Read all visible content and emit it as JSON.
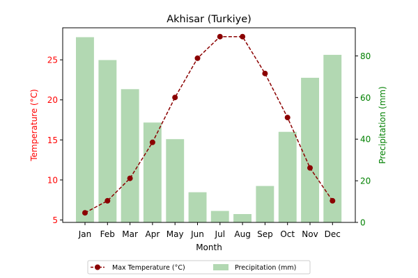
{
  "chart_data": {
    "type": "bar",
    "title": "Akhisar (Turkiye)",
    "xlabel": "Month",
    "ylabel_left": "Temperature (°C)",
    "ylabel_right": "Precipitation (mm)",
    "categories": [
      "Jan",
      "Feb",
      "Mar",
      "Apr",
      "May",
      "Jun",
      "Jul",
      "Aug",
      "Sep",
      "Oct",
      "Nov",
      "Dec"
    ],
    "series": [
      {
        "name": "Max Temperature (°C)",
        "type": "line",
        "axis": "left",
        "color": "#8b0000",
        "values": [
          5.9,
          7.4,
          10.2,
          14.7,
          20.3,
          25.2,
          27.9,
          27.9,
          23.3,
          17.8,
          11.5,
          7.4
        ]
      },
      {
        "name": "Precipitation (mm)",
        "type": "bar",
        "axis": "right",
        "color": "#b2d8b2",
        "values": [
          89,
          78,
          64,
          48,
          40,
          14.5,
          5.5,
          4,
          17.5,
          43.5,
          69.5,
          80.5
        ]
      }
    ],
    "ylim_left": [
      4.7,
      29.0
    ],
    "yticks_left": [
      5,
      10,
      15,
      20,
      25
    ],
    "ylim_right": [
      0,
      93.5
    ],
    "yticks_right": [
      0,
      20,
      40,
      60,
      80
    ],
    "left_axis_color": "#ff0000",
    "right_axis_color": "#008000",
    "grid": false,
    "legend_position": "bottom-center"
  }
}
